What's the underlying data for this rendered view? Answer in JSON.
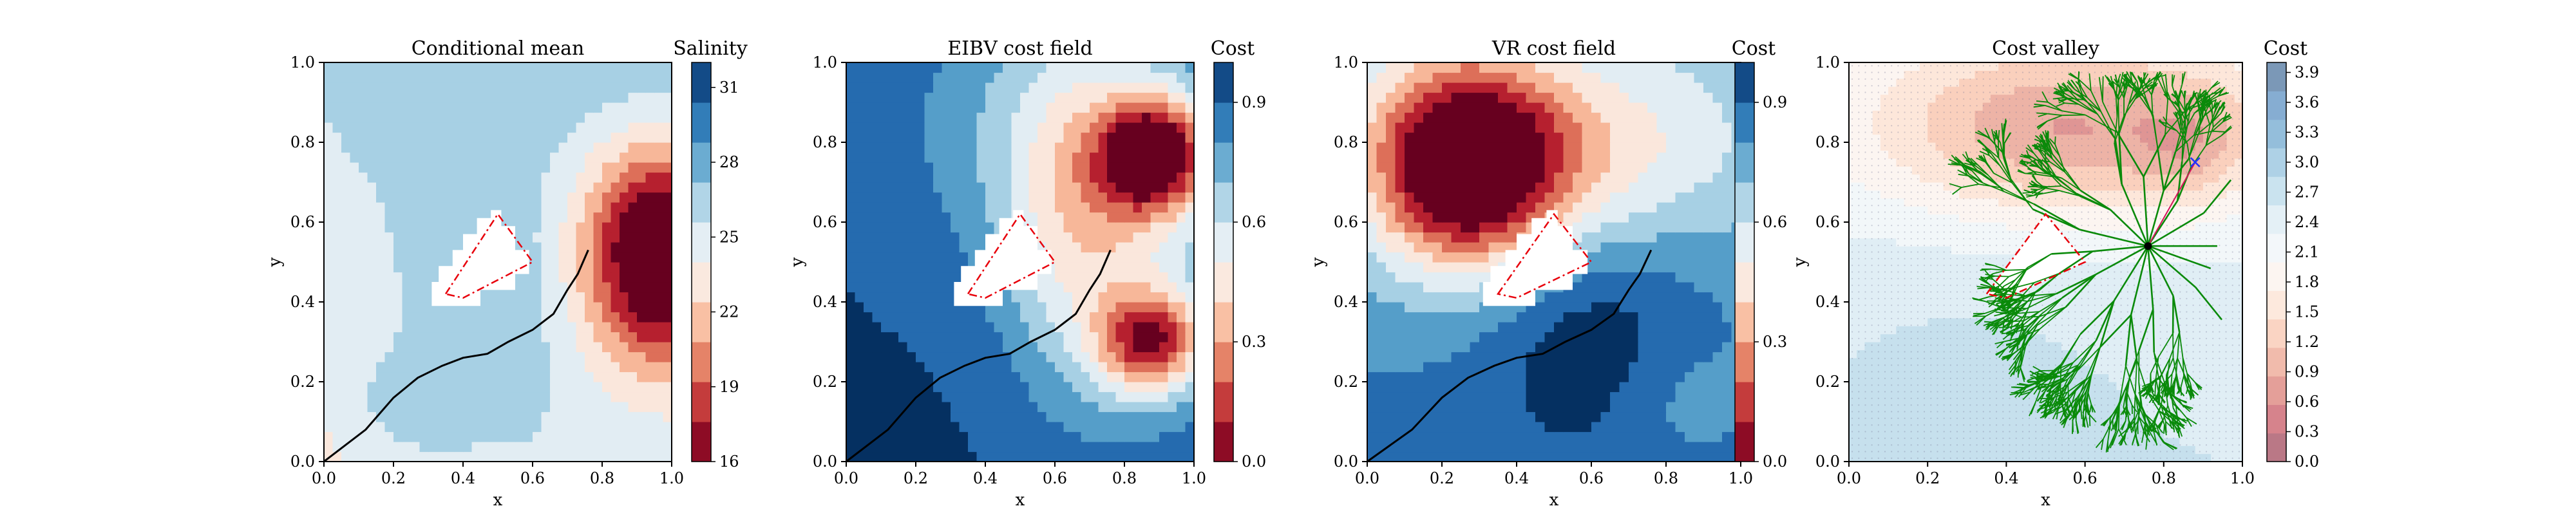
{
  "chart_data": [
    {
      "type": "heatmap",
      "title": "Conditional mean",
      "xlabel": "x",
      "ylabel": "y",
      "xlim": [
        0,
        1
      ],
      "ylim": [
        0,
        1
      ],
      "xticks": [
        "0.0",
        "0.2",
        "0.4",
        "0.6",
        "0.8",
        "1.0"
      ],
      "yticks": [
        "0.0",
        "0.2",
        "0.4",
        "0.6",
        "0.8",
        "1.0"
      ],
      "colorbar": {
        "label": "Salinity",
        "range": [
          16,
          32
        ],
        "ticks": [
          "16",
          "19",
          "22",
          "25",
          "28",
          "31"
        ],
        "tick_values": [
          16,
          19,
          22,
          25,
          28,
          31
        ],
        "colormap": "RdBu"
      },
      "path": [
        [
          0.0,
          0.0
        ],
        [
          0.12,
          0.08
        ],
        [
          0.2,
          0.16
        ],
        [
          0.27,
          0.21
        ],
        [
          0.34,
          0.24
        ],
        [
          0.4,
          0.26
        ],
        [
          0.47,
          0.27
        ],
        [
          0.53,
          0.3
        ],
        [
          0.6,
          0.33
        ],
        [
          0.66,
          0.37
        ],
        [
          0.7,
          0.43
        ],
        [
          0.73,
          0.47
        ],
        [
          0.76,
          0.53
        ]
      ],
      "obstacle": [
        [
          0.31,
          0.41
        ],
        [
          0.31,
          0.45
        ],
        [
          0.33,
          0.45
        ],
        [
          0.33,
          0.49
        ],
        [
          0.37,
          0.49
        ],
        [
          0.37,
          0.53
        ],
        [
          0.4,
          0.53
        ],
        [
          0.4,
          0.57
        ],
        [
          0.44,
          0.57
        ],
        [
          0.44,
          0.61
        ],
        [
          0.48,
          0.61
        ],
        [
          0.48,
          0.63
        ],
        [
          0.51,
          0.63
        ],
        [
          0.51,
          0.59
        ],
        [
          0.55,
          0.59
        ],
        [
          0.55,
          0.53
        ],
        [
          0.59,
          0.53
        ],
        [
          0.59,
          0.47
        ],
        [
          0.55,
          0.47
        ],
        [
          0.55,
          0.43
        ],
        [
          0.45,
          0.43
        ],
        [
          0.45,
          0.39
        ],
        [
          0.31,
          0.39
        ]
      ],
      "polygon": [
        [
          0.35,
          0.42
        ],
        [
          0.5,
          0.62
        ],
        [
          0.6,
          0.5
        ],
        [
          0.4,
          0.41
        ]
      ]
    },
    {
      "type": "heatmap",
      "title": "EIBV cost field",
      "xlabel": "x",
      "ylabel": "y",
      "xlim": [
        0,
        1
      ],
      "ylim": [
        0,
        1
      ],
      "xticks": [
        "0.0",
        "0.2",
        "0.4",
        "0.6",
        "0.8",
        "1.0"
      ],
      "yticks": [
        "0.0",
        "0.2",
        "0.4",
        "0.6",
        "0.8",
        "1.0"
      ],
      "colorbar": {
        "label": "Cost",
        "range": [
          0,
          1
        ],
        "ticks": [
          "0.0",
          "0.3",
          "0.6",
          "0.9"
        ],
        "tick_values": [
          0,
          0.3,
          0.6,
          0.9
        ],
        "colormap": "RdBu"
      },
      "path": [
        [
          0.0,
          0.0
        ],
        [
          0.12,
          0.08
        ],
        [
          0.2,
          0.16
        ],
        [
          0.27,
          0.21
        ],
        [
          0.34,
          0.24
        ],
        [
          0.4,
          0.26
        ],
        [
          0.47,
          0.27
        ],
        [
          0.53,
          0.3
        ],
        [
          0.6,
          0.33
        ],
        [
          0.66,
          0.37
        ],
        [
          0.7,
          0.43
        ],
        [
          0.73,
          0.47
        ],
        [
          0.76,
          0.53
        ]
      ],
      "obstacle": [
        [
          0.31,
          0.41
        ],
        [
          0.31,
          0.45
        ],
        [
          0.33,
          0.45
        ],
        [
          0.33,
          0.49
        ],
        [
          0.37,
          0.49
        ],
        [
          0.37,
          0.53
        ],
        [
          0.4,
          0.53
        ],
        [
          0.4,
          0.57
        ],
        [
          0.44,
          0.57
        ],
        [
          0.44,
          0.61
        ],
        [
          0.48,
          0.61
        ],
        [
          0.48,
          0.63
        ],
        [
          0.51,
          0.63
        ],
        [
          0.51,
          0.59
        ],
        [
          0.55,
          0.59
        ],
        [
          0.55,
          0.53
        ],
        [
          0.59,
          0.53
        ],
        [
          0.59,
          0.47
        ],
        [
          0.55,
          0.47
        ],
        [
          0.55,
          0.43
        ],
        [
          0.45,
          0.43
        ],
        [
          0.45,
          0.39
        ],
        [
          0.31,
          0.39
        ]
      ],
      "polygon": [
        [
          0.35,
          0.42
        ],
        [
          0.5,
          0.62
        ],
        [
          0.6,
          0.5
        ],
        [
          0.4,
          0.41
        ]
      ]
    },
    {
      "type": "heatmap",
      "title": "VR cost field",
      "xlabel": "x",
      "ylabel": "y",
      "xlim": [
        0,
        1
      ],
      "ylim": [
        0,
        1
      ],
      "xticks": [
        "0.0",
        "0.2",
        "0.4",
        "0.6",
        "0.8",
        "1.0"
      ],
      "yticks": [
        "0.0",
        "0.2",
        "0.4",
        "0.6",
        "0.8",
        "1.0"
      ],
      "colorbar": {
        "label": "Cost",
        "range": [
          0,
          1
        ],
        "ticks": [
          "0.0",
          "0.3",
          "0.6",
          "0.9"
        ],
        "tick_values": [
          0,
          0.3,
          0.6,
          0.9
        ],
        "colormap": "RdBu"
      },
      "path": [
        [
          0.0,
          0.0
        ],
        [
          0.12,
          0.08
        ],
        [
          0.2,
          0.16
        ],
        [
          0.27,
          0.21
        ],
        [
          0.34,
          0.24
        ],
        [
          0.4,
          0.26
        ],
        [
          0.47,
          0.27
        ],
        [
          0.53,
          0.3
        ],
        [
          0.6,
          0.33
        ],
        [
          0.66,
          0.37
        ],
        [
          0.7,
          0.43
        ],
        [
          0.73,
          0.47
        ],
        [
          0.76,
          0.53
        ]
      ],
      "obstacle": [
        [
          0.31,
          0.41
        ],
        [
          0.31,
          0.45
        ],
        [
          0.33,
          0.45
        ],
        [
          0.33,
          0.49
        ],
        [
          0.37,
          0.49
        ],
        [
          0.37,
          0.53
        ],
        [
          0.4,
          0.53
        ],
        [
          0.4,
          0.57
        ],
        [
          0.44,
          0.57
        ],
        [
          0.44,
          0.61
        ],
        [
          0.48,
          0.61
        ],
        [
          0.48,
          0.63
        ],
        [
          0.51,
          0.63
        ],
        [
          0.51,
          0.59
        ],
        [
          0.55,
          0.59
        ],
        [
          0.55,
          0.53
        ],
        [
          0.59,
          0.53
        ],
        [
          0.59,
          0.47
        ],
        [
          0.55,
          0.47
        ],
        [
          0.55,
          0.43
        ],
        [
          0.45,
          0.43
        ],
        [
          0.45,
          0.39
        ],
        [
          0.31,
          0.39
        ]
      ],
      "polygon": [
        [
          0.35,
          0.42
        ],
        [
          0.5,
          0.62
        ],
        [
          0.6,
          0.5
        ],
        [
          0.4,
          0.41
        ]
      ]
    },
    {
      "type": "heatmap",
      "title": "Cost valley",
      "xlabel": "x",
      "ylabel": "y",
      "xlim": [
        0,
        1
      ],
      "ylim": [
        0,
        1
      ],
      "xticks": [
        "0.0",
        "0.2",
        "0.4",
        "0.6",
        "0.8",
        "1.0"
      ],
      "yticks": [
        "0.0",
        "0.2",
        "0.4",
        "0.6",
        "0.8",
        "1.0"
      ],
      "colorbar": {
        "label": "Cost",
        "range": [
          0,
          4
        ],
        "ticks": [
          "0.0",
          "0.3",
          "0.6",
          "0.9",
          "1.2",
          "1.5",
          "1.8",
          "2.1",
          "2.4",
          "2.7",
          "3.0",
          "3.3",
          "3.6",
          "3.9"
        ],
        "tick_values": [
          0,
          0.3,
          0.6,
          0.9,
          1.2,
          1.5,
          1.8,
          2.1,
          2.4,
          2.7,
          3.0,
          3.3,
          3.6,
          3.9
        ],
        "colormap": "RdBu"
      },
      "tree_root": [
        0.76,
        0.54
      ],
      "target": [
        0.88,
        0.75
      ],
      "polygon": [
        [
          0.35,
          0.42
        ],
        [
          0.5,
          0.62
        ],
        [
          0.6,
          0.5
        ],
        [
          0.4,
          0.41
        ]
      ]
    }
  ],
  "colors": {
    "path": "#000000",
    "polygon": "#e8000b",
    "tree": "#0a8a0a",
    "target": "#2233ff"
  }
}
